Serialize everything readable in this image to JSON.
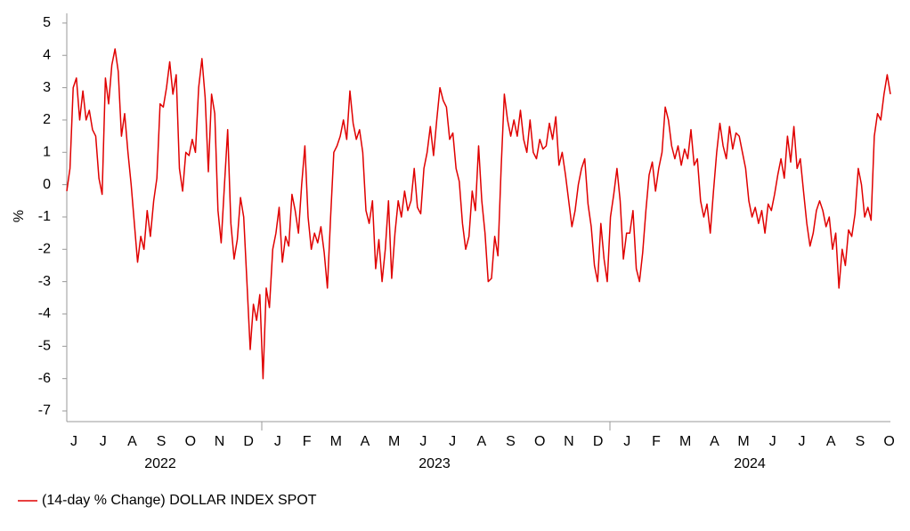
{
  "chart_data": {
    "type": "line",
    "y_label": "%",
    "x_month_labels": [
      "J",
      "J",
      "A",
      "S",
      "O",
      "N",
      "D",
      "J",
      "F",
      "M",
      "A",
      "M",
      "J",
      "J",
      "A",
      "S",
      "O",
      "N",
      "D",
      "J",
      "F",
      "M",
      "A",
      "M",
      "J",
      "J",
      "A",
      "S",
      "O"
    ],
    "x_year_labels": [
      "2022",
      "2023",
      "2024"
    ],
    "ylim": [
      -7.33,
      5.3
    ],
    "yticks": [
      5,
      4,
      3,
      2,
      1,
      0,
      -1,
      -2,
      -3,
      -4,
      -5,
      -6,
      -7
    ],
    "legend_position": "bottom-left",
    "series": [
      {
        "name": "(14-day % Change) DOLLAR INDEX SPOT",
        "color": "#e00000",
        "values": [
          -0.2,
          0.5,
          3.0,
          3.3,
          2.0,
          2.9,
          2.0,
          2.3,
          1.7,
          1.5,
          0.2,
          -0.3,
          3.3,
          2.5,
          3.7,
          4.2,
          3.5,
          1.5,
          2.2,
          1.0,
          0.0,
          -1.2,
          -2.4,
          -1.6,
          -2.0,
          -0.8,
          -1.6,
          -0.5,
          0.2,
          2.5,
          2.4,
          3.0,
          3.8,
          2.8,
          3.4,
          0.5,
          -0.2,
          1.0,
          0.9,
          1.4,
          1.0,
          3.0,
          3.9,
          2.7,
          0.4,
          2.8,
          2.2,
          -0.8,
          -1.8,
          0.0,
          1.7,
          -1.2,
          -2.3,
          -1.7,
          -0.4,
          -1.0,
          -3.0,
          -5.1,
          -3.7,
          -4.2,
          -3.4,
          -6.0,
          -3.2,
          -3.8,
          -2.0,
          -1.5,
          -0.7,
          -2.4,
          -1.6,
          -1.9,
          -0.3,
          -0.8,
          -1.5,
          0.0,
          1.2,
          -1.0,
          -2.0,
          -1.5,
          -1.8,
          -1.3,
          -2.1,
          -3.2,
          -1.0,
          1.0,
          1.2,
          1.5,
          2.0,
          1.4,
          2.9,
          1.9,
          1.4,
          1.7,
          1.0,
          -0.8,
          -1.2,
          -0.5,
          -2.6,
          -1.7,
          -3.0,
          -2.0,
          -0.5,
          -2.9,
          -1.5,
          -0.5,
          -1.0,
          -0.2,
          -0.8,
          -0.5,
          0.5,
          -0.7,
          -0.9,
          0.5,
          1.0,
          1.8,
          0.9,
          2.0,
          3.0,
          2.6,
          2.4,
          1.4,
          1.6,
          0.5,
          0.1,
          -1.2,
          -2.0,
          -1.6,
          -0.2,
          -0.8,
          1.2,
          -0.5,
          -1.5,
          -3.0,
          -2.9,
          -1.6,
          -2.2,
          0.5,
          2.8,
          2.0,
          1.5,
          2.0,
          1.5,
          2.3,
          1.4,
          1.0,
          2.0,
          1.0,
          0.8,
          1.4,
          1.1,
          1.2,
          1.9,
          1.4,
          2.1,
          0.6,
          1.0,
          0.3,
          -0.5,
          -1.3,
          -0.8,
          0.0,
          0.5,
          0.8,
          -0.6,
          -1.3,
          -2.5,
          -3.0,
          -1.2,
          -2.3,
          -3.0,
          -1.0,
          -0.3,
          0.5,
          -0.5,
          -2.3,
          -1.5,
          -1.5,
          -0.8,
          -2.6,
          -3.0,
          -2.1,
          -0.8,
          0.3,
          0.7,
          -0.2,
          0.5,
          1.0,
          2.4,
          2.0,
          1.2,
          0.8,
          1.2,
          0.6,
          1.1,
          0.8,
          1.7,
          0.6,
          0.8,
          -0.5,
          -1.0,
          -0.6,
          -1.5,
          -0.2,
          1.0,
          1.9,
          1.2,
          0.8,
          1.8,
          1.1,
          1.6,
          1.5,
          1.0,
          0.5,
          -0.5,
          -1.0,
          -0.7,
          -1.2,
          -0.8,
          -1.5,
          -0.6,
          -0.8,
          -0.3,
          0.3,
          0.8,
          0.2,
          1.5,
          0.7,
          1.8,
          0.5,
          0.8,
          -0.2,
          -1.2,
          -1.9,
          -1.5,
          -0.8,
          -0.5,
          -0.8,
          -1.3,
          -1.0,
          -2.0,
          -1.5,
          -3.2,
          -2.0,
          -2.5,
          -1.4,
          -1.6,
          -0.9,
          0.5,
          0.0,
          -1.0,
          -0.7,
          -1.1,
          1.5,
          2.2,
          2.0,
          2.8,
          3.4,
          2.8
        ]
      }
    ]
  }
}
